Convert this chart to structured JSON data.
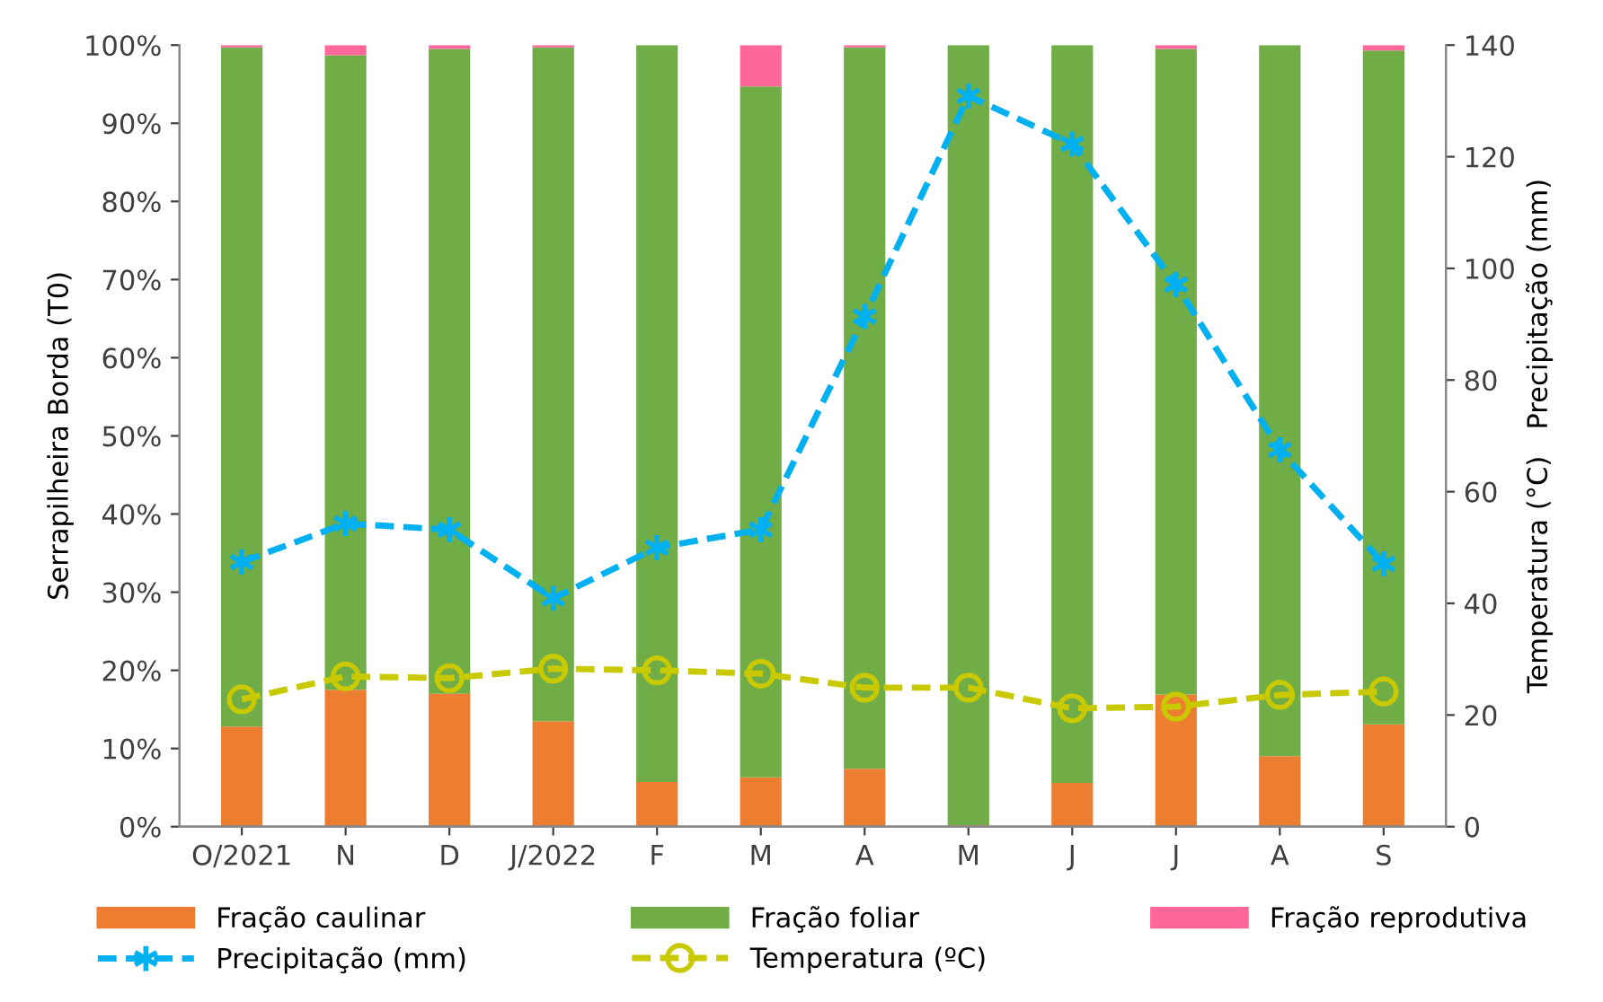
{
  "chart_data": {
    "type": "bar",
    "stacked": true,
    "ylabel": "Serrapilheira Borda (T0)",
    "y2label": "Temperatura (°C)   Precipitação (mm)",
    "categories": [
      "O/2021",
      "N",
      "D",
      "J/2022",
      "F",
      "M",
      "A",
      "M",
      "J",
      "J",
      "A",
      "S"
    ],
    "ylim": [
      0,
      100
    ],
    "yticks": [
      {
        "value": 0,
        "label": "0%"
      },
      {
        "value": 10,
        "label": "10%"
      },
      {
        "value": 20,
        "label": "20%"
      },
      {
        "value": 30,
        "label": "30%"
      },
      {
        "value": 40,
        "label": "40%"
      },
      {
        "value": 50,
        "label": "50%"
      },
      {
        "value": 60,
        "label": "60%"
      },
      {
        "value": 70,
        "label": "70%"
      },
      {
        "value": 80,
        "label": "80%"
      },
      {
        "value": 90,
        "label": "90%"
      },
      {
        "value": 100,
        "label": "100%"
      }
    ],
    "y2lim": [
      0,
      140
    ],
    "y2ticks": [
      0,
      20,
      40,
      60,
      80,
      100,
      120,
      140
    ],
    "grid": false,
    "legend": "bottom",
    "series": [
      {
        "name": "Fração caulinar",
        "color": "#ed7d31",
        "values": [
          12.8,
          17.5,
          17.0,
          13.5,
          5.7,
          6.3,
          7.4,
          0.2,
          5.6,
          16.9,
          9.0,
          13.1
        ]
      },
      {
        "name": "Fração foliar",
        "color": "#70ad47",
        "values": [
          86.9,
          81.2,
          82.5,
          86.2,
          94.3,
          88.4,
          92.3,
          99.8,
          94.4,
          82.6,
          91.0,
          86.2
        ]
      },
      {
        "name": "Fração reprodutiva",
        "color": "#ff6699",
        "values": [
          0.3,
          1.3,
          0.5,
          0.3,
          0,
          5.3,
          0.3,
          0,
          0,
          0.5,
          0,
          0.7
        ]
      },
      {
        "name": "Precipitação (mm)",
        "type": "line",
        "axis": "y2",
        "color": "#00b0f0",
        "marker": "cross",
        "line_style": "dashed",
        "values": [
          47.4,
          54.3,
          53.2,
          40.9,
          50.0,
          53.2,
          91.4,
          130.9,
          122.3,
          97.1,
          67.5,
          47.1
        ]
      },
      {
        "name": "Temperatura (ºC)",
        "type": "line",
        "axis": "y2",
        "color": "#c9c900",
        "marker": "circle",
        "line_style": "dashed",
        "values": [
          22.8,
          26.9,
          26.6,
          28.3,
          28.0,
          27.4,
          24.9,
          24.9,
          21.2,
          21.5,
          23.6,
          24.2
        ]
      }
    ]
  }
}
